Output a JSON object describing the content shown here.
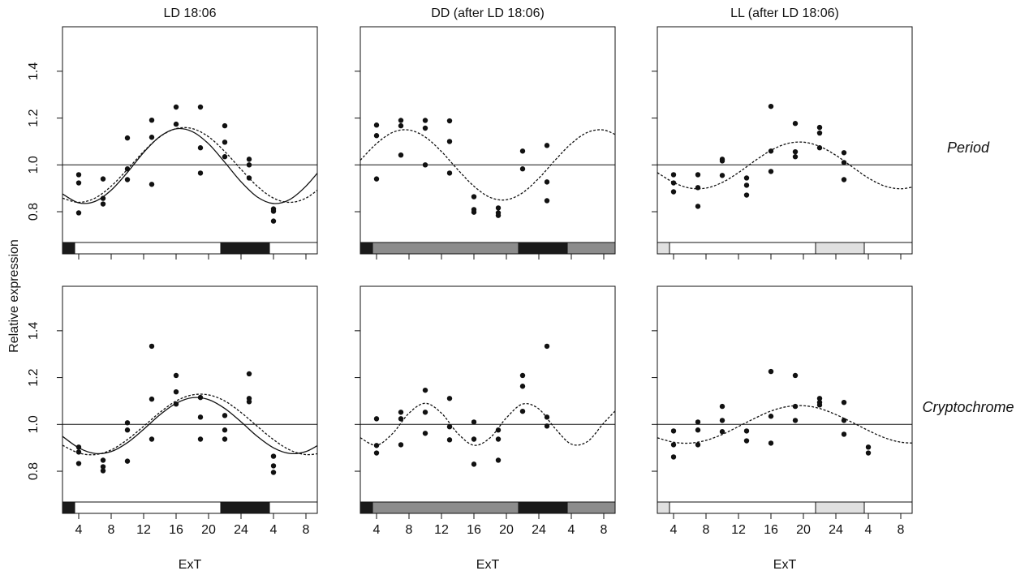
{
  "ylabel": "Relative expression",
  "chart_data": [
    {
      "type": "scatter",
      "title": "LD 18:06",
      "xlim": [
        2,
        33.4
      ],
      "ylim": [
        0.62,
        1.59
      ],
      "xticks": [
        4,
        8,
        12,
        16,
        20,
        24,
        {
          "value": 28,
          "label": "4"
        },
        {
          "value": 32,
          "label": "8"
        }
      ],
      "xtick_labels": false,
      "yticks": [
        0.8,
        {
          "value": 1,
          "label": "1.0"
        },
        1.2,
        1.4
      ],
      "ytick_labels": true,
      "hline": 1,
      "points": {
        "x": [
          4,
          4,
          4,
          7,
          7,
          7,
          10,
          10,
          10,
          13,
          13,
          13,
          16,
          16,
          19,
          19,
          19,
          22,
          22,
          22,
          25,
          25,
          25,
          28,
          28,
          28
        ],
        "values": [
          0.958,
          0.923,
          0.795,
          0.94,
          0.857,
          0.833,
          1.115,
          0.983,
          0.937,
          1.191,
          1.118,
          0.917,
          1.247,
          1.174,
          1.247,
          1.073,
          0.965,
          1.167,
          1.097,
          1.035,
          1.024,
          1.0,
          0.944,
          0.812,
          0.802,
          0.76
        ]
      },
      "curve_x": [
        2,
        4,
        6,
        8,
        10,
        12,
        14,
        16,
        18,
        20,
        22,
        24,
        26,
        28,
        30,
        32,
        34
      ],
      "curves": [
        {
          "style": "solid",
          "values": [
            0.876,
            0.838,
            0.844,
            0.892,
            0.968,
            1.053,
            1.121,
            1.154,
            1.142,
            1.09,
            1.011,
            0.928,
            0.863,
            0.835,
            0.852,
            0.909,
            0.99
          ]
        },
        {
          "style": "dashed",
          "values": [
            0.858,
            0.84,
            0.858,
            0.909,
            0.981,
            1.057,
            1.12,
            1.155,
            1.155,
            1.12,
            1.057,
            0.981,
            0.909,
            0.858,
            0.84,
            0.858,
            0.909
          ]
        }
      ],
      "bars": [
        {
          "start": 2,
          "end": 3.5,
          "color": "#1a1a1a"
        },
        {
          "start": 3.5,
          "end": 21.5,
          "color": "#ffffff"
        },
        {
          "start": 21.5,
          "end": 27.5,
          "color": "#1a1a1a"
        },
        {
          "start": 27.5,
          "end": 33.4,
          "color": "#ffffff"
        }
      ]
    },
    {
      "type": "scatter",
      "title": "DD (after LD 18:06)",
      "xlim": [
        2,
        33.4
      ],
      "ylim": [
        0.62,
        1.59
      ],
      "xticks": [
        4,
        8,
        12,
        16,
        20,
        24,
        {
          "value": 28,
          "label": "4"
        },
        {
          "value": 32,
          "label": "8"
        }
      ],
      "xtick_labels": false,
      "yticks": [
        0.8,
        {
          "value": 1,
          "label": "1.0"
        },
        1.2,
        1.4
      ],
      "ytick_labels": false,
      "hline": 1,
      "points": {
        "x": [
          4,
          4,
          4,
          7,
          7,
          7,
          10,
          10,
          10,
          13,
          13,
          13,
          16,
          16,
          16,
          19,
          19,
          19,
          22,
          22,
          25,
          25,
          25
        ],
        "values": [
          1.17,
          1.125,
          0.94,
          1.19,
          1.167,
          1.042,
          1.19,
          1.157,
          1.0,
          1.188,
          1.1,
          0.965,
          0.864,
          0.809,
          0.798,
          0.816,
          0.795,
          0.784,
          1.059,
          0.983,
          1.083,
          0.927,
          0.847
        ]
      },
      "curve_x": [
        2,
        4,
        6,
        8,
        10,
        12,
        14,
        16,
        18,
        20,
        22,
        24,
        26,
        28,
        30,
        32,
        34
      ],
      "curves": [
        {
          "style": "dashed",
          "values": [
            1.02,
            1.091,
            1.139,
            1.149,
            1.119,
            1.057,
            0.98,
            0.909,
            0.861,
            0.851,
            0.881,
            0.943,
            1.02,
            1.091,
            1.139,
            1.149,
            1.119
          ]
        }
      ],
      "bars": [
        {
          "start": 2,
          "end": 3.5,
          "color": "#1a1a1a"
        },
        {
          "start": 3.5,
          "end": 21.5,
          "color": "#8c8c8c"
        },
        {
          "start": 21.5,
          "end": 27.5,
          "color": "#1a1a1a"
        },
        {
          "start": 27.5,
          "end": 33.4,
          "color": "#8c8c8c"
        }
      ]
    },
    {
      "type": "scatter",
      "title": "LL (after LD 18:06)",
      "row_label": "Period",
      "xlim": [
        2,
        33.4
      ],
      "ylim": [
        0.62,
        1.59
      ],
      "xticks": [
        4,
        8,
        12,
        16,
        20,
        24,
        {
          "value": 28,
          "label": "4"
        },
        {
          "value": 32,
          "label": "8"
        }
      ],
      "xtick_labels": false,
      "yticks": [
        0.8,
        {
          "value": 1,
          "label": "1.0"
        },
        1.2,
        1.4
      ],
      "ytick_labels": false,
      "hline": 1,
      "points": {
        "x": [
          4,
          4,
          4,
          7,
          7,
          7,
          10,
          10,
          10,
          13,
          13,
          13,
          16,
          16,
          16,
          19,
          19,
          19,
          22,
          22,
          22,
          25,
          25,
          25
        ],
        "values": [
          0.958,
          0.923,
          0.885,
          0.958,
          0.903,
          0.823,
          1.024,
          1.017,
          0.955,
          0.944,
          0.913,
          0.871,
          1.25,
          1.059,
          0.972,
          1.177,
          1.056,
          1.035,
          1.16,
          1.136,
          1.073,
          1.052,
          1.01,
          0.937
        ]
      },
      "curve_x": [
        2,
        4,
        6,
        8,
        10,
        12,
        14,
        16,
        18,
        20,
        22,
        24,
        26,
        28,
        30,
        32,
        34
      ],
      "curves": [
        {
          "style": "dashed",
          "values": [
            0.967,
            0.925,
            0.901,
            0.901,
            0.925,
            0.967,
            1.017,
            1.062,
            1.091,
            1.097,
            1.079,
            1.041,
            0.992,
            0.944,
            0.91,
            0.898,
            0.91
          ]
        }
      ],
      "bars": [
        {
          "start": 2,
          "end": 3.5,
          "color": "#e0e0e0"
        },
        {
          "start": 3.5,
          "end": 21.5,
          "color": "#ffffff"
        },
        {
          "start": 21.5,
          "end": 27.5,
          "color": "#e0e0e0"
        },
        {
          "start": 27.5,
          "end": 33.4,
          "color": "#ffffff"
        }
      ]
    },
    {
      "type": "scatter",
      "xlabel": "ExT",
      "xlim": [
        2,
        33.4
      ],
      "ylim": [
        0.62,
        1.59
      ],
      "xticks": [
        4,
        8,
        12,
        16,
        20,
        24,
        {
          "value": 28,
          "label": "4"
        },
        {
          "value": 32,
          "label": "8"
        }
      ],
      "xtick_labels": true,
      "yticks": [
        0.8,
        {
          "value": 1,
          "label": "1.0"
        },
        1.2,
        1.4
      ],
      "ytick_labels": true,
      "hline": 1,
      "points": {
        "x": [
          4,
          4,
          4,
          7,
          7,
          7,
          10,
          10,
          10,
          13,
          13,
          13,
          16,
          16,
          16,
          19,
          19,
          19,
          22,
          22,
          22,
          25,
          25,
          25,
          28,
          28,
          28
        ],
        "values": [
          0.903,
          0.882,
          0.833,
          0.847,
          0.819,
          0.802,
          1.007,
          0.976,
          0.843,
          1.334,
          1.108,
          0.937,
          1.209,
          1.139,
          1.087,
          1.115,
          1.031,
          0.937,
          1.038,
          0.976,
          0.937,
          1.216,
          1.111,
          1.097,
          0.864,
          0.823,
          0.795
        ]
      },
      "curve_x": [
        2,
        4,
        6,
        8,
        10,
        12,
        14,
        16,
        18,
        20,
        22,
        24,
        26,
        28,
        30,
        32,
        34
      ],
      "curves": [
        {
          "style": "solid",
          "values": [
            0.949,
            0.9,
            0.876,
            0.884,
            0.922,
            0.979,
            1.041,
            1.09,
            1.114,
            1.106,
            1.068,
            1.011,
            0.949,
            0.9,
            0.876,
            0.884,
            0.922
          ]
        },
        {
          "style": "dashed",
          "values": [
            0.911,
            0.878,
            0.871,
            0.891,
            0.935,
            0.992,
            1.051,
            1.1,
            1.126,
            1.126,
            1.1,
            1.051,
            0.992,
            0.935,
            0.891,
            0.871,
            0.878
          ]
        }
      ],
      "bars": [
        {
          "start": 2,
          "end": 3.5,
          "color": "#1a1a1a"
        },
        {
          "start": 3.5,
          "end": 21.5,
          "color": "#ffffff"
        },
        {
          "start": 21.5,
          "end": 27.5,
          "color": "#1a1a1a"
        },
        {
          "start": 27.5,
          "end": 33.4,
          "color": "#ffffff"
        }
      ]
    },
    {
      "type": "scatter",
      "xlabel": "ExT",
      "xlim": [
        2,
        33.4
      ],
      "ylim": [
        0.62,
        1.59
      ],
      "xticks": [
        4,
        8,
        12,
        16,
        20,
        24,
        {
          "value": 28,
          "label": "4"
        },
        {
          "value": 32,
          "label": "8"
        }
      ],
      "xtick_labels": true,
      "yticks": [
        0.8,
        {
          "value": 1,
          "label": "1.0"
        },
        1.2,
        1.4
      ],
      "ytick_labels": false,
      "hline": 1,
      "points": {
        "x": [
          4,
          4,
          4,
          7,
          7,
          7,
          10,
          10,
          10,
          13,
          13,
          13,
          16,
          16,
          16,
          19,
          19,
          19,
          22,
          22,
          22,
          25,
          25,
          25
        ],
        "values": [
          1.024,
          0.91,
          0.878,
          1.052,
          1.024,
          0.913,
          1.146,
          1.052,
          0.962,
          1.111,
          0.99,
          0.934,
          1.01,
          0.937,
          0.83,
          0.976,
          0.937,
          0.847,
          1.209,
          1.163,
          1.056,
          1.334,
          1.031,
          0.993
        ]
      },
      "curve_x": [
        2,
        4,
        6,
        8,
        10,
        12,
        14,
        16,
        18,
        20,
        22,
        24,
        26,
        28,
        30,
        32,
        34
      ],
      "curves": [
        {
          "style": "dashed",
          "values": [
            0.943,
            0.911,
            0.962,
            1.048,
            1.09,
            1.048,
            0.962,
            0.911,
            0.943,
            1.028,
            1.087,
            1.066,
            0.983,
            0.916,
            0.927,
            1.006,
            1.079
          ]
        }
      ],
      "bars": [
        {
          "start": 2,
          "end": 3.5,
          "color": "#1a1a1a"
        },
        {
          "start": 3.5,
          "end": 21.5,
          "color": "#8c8c8c"
        },
        {
          "start": 21.5,
          "end": 27.5,
          "color": "#1a1a1a"
        },
        {
          "start": 27.5,
          "end": 33.4,
          "color": "#8c8c8c"
        }
      ]
    },
    {
      "type": "scatter",
      "row_label": "Cryptochrome",
      "xlabel": "ExT",
      "xlim": [
        2,
        33.4
      ],
      "ylim": [
        0.62,
        1.59
      ],
      "xticks": [
        4,
        8,
        12,
        16,
        20,
        24,
        {
          "value": 28,
          "label": "4"
        },
        {
          "value": 32,
          "label": "8"
        }
      ],
      "xtick_labels": true,
      "yticks": [
        0.8,
        {
          "value": 1,
          "label": "1.0"
        },
        1.2,
        1.4
      ],
      "ytick_labels": false,
      "hline": 1,
      "points": {
        "x": [
          4,
          4,
          4,
          7,
          7,
          7,
          10,
          10,
          10,
          13,
          13,
          16,
          16,
          16,
          19,
          19,
          19,
          22,
          22,
          22,
          25,
          25,
          25,
          28,
          28
        ],
        "values": [
          0.972,
          0.913,
          0.861,
          1.01,
          0.976,
          0.913,
          1.077,
          1.017,
          0.969,
          0.972,
          0.93,
          1.226,
          1.035,
          0.92,
          1.209,
          1.077,
          1.017,
          1.111,
          1.094,
          1.083,
          1.094,
          1.017,
          0.958,
          0.903,
          0.878
        ]
      },
      "curve_x": [
        2,
        4,
        6,
        8,
        10,
        12,
        14,
        16,
        18,
        20,
        22,
        24,
        26,
        28,
        30,
        32,
        34
      ],
      "curves": [
        {
          "style": "dashed",
          "values": [
            0.943,
            0.924,
            0.92,
            0.932,
            0.957,
            0.991,
            1.026,
            1.057,
            1.076,
            1.08,
            1.068,
            1.042,
            1.009,
            0.974,
            0.943,
            0.924,
            0.92
          ]
        }
      ],
      "bars": [
        {
          "start": 2,
          "end": 3.5,
          "color": "#e0e0e0"
        },
        {
          "start": 3.5,
          "end": 21.5,
          "color": "#ffffff"
        },
        {
          "start": 21.5,
          "end": 27.5,
          "color": "#e0e0e0"
        },
        {
          "start": 27.5,
          "end": 33.4,
          "color": "#ffffff"
        }
      ]
    }
  ]
}
